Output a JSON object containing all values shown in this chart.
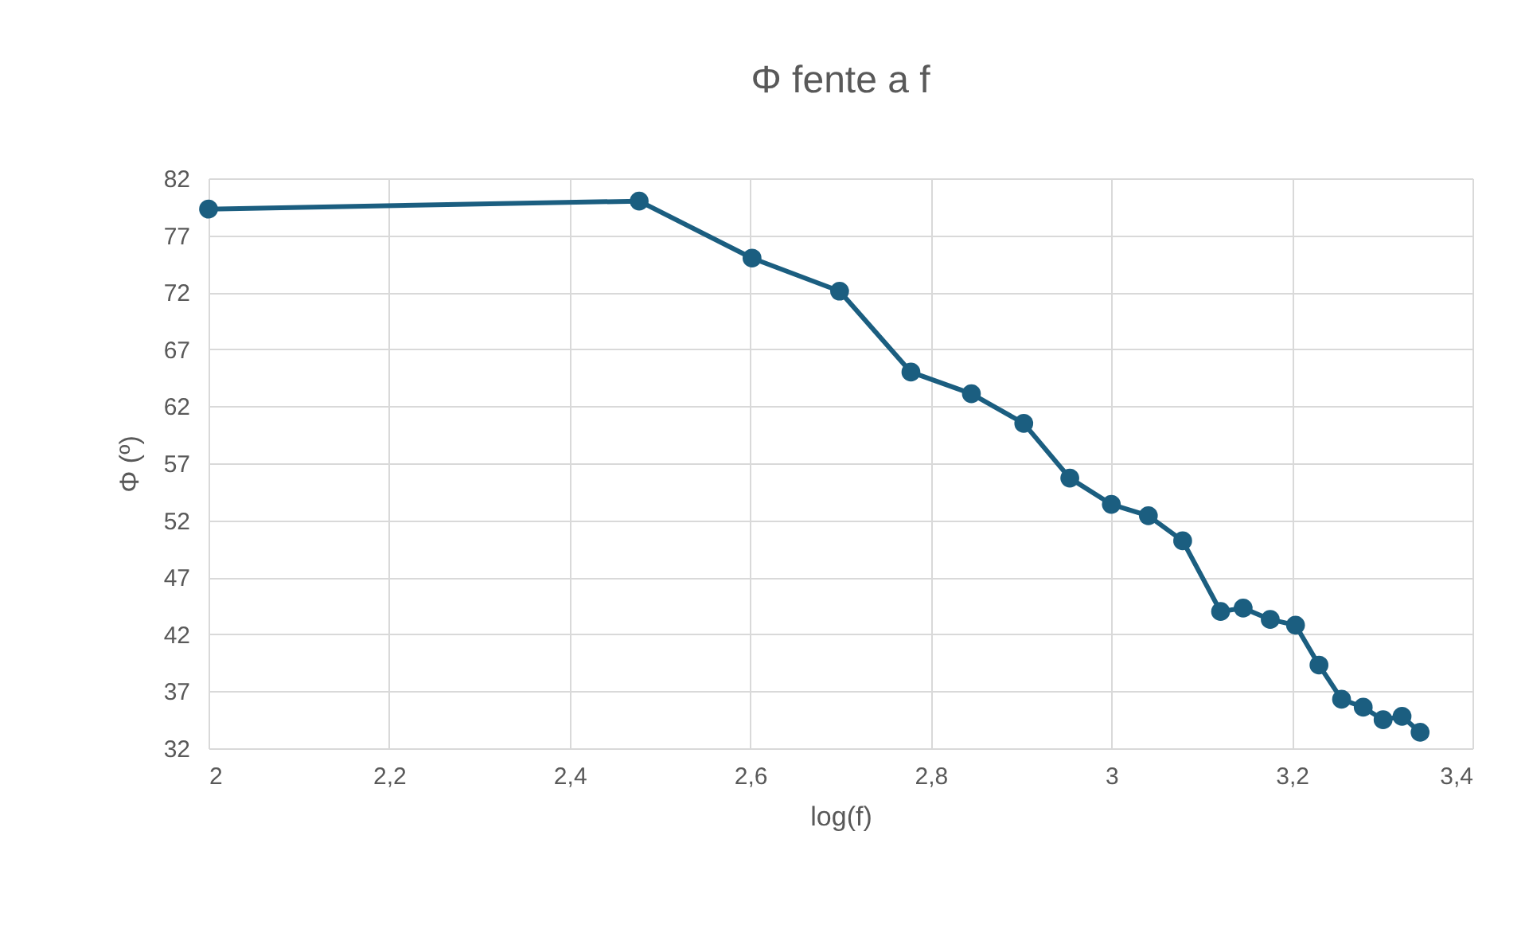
{
  "chart_data": {
    "type": "line",
    "title": "Φ  fente a f",
    "xlabel": "log(f)",
    "ylabel": "Φ (º)",
    "x": [
      2,
      2.477,
      2.602,
      2.699,
      2.778,
      2.845,
      2.903,
      2.954,
      3,
      3.041,
      3.079,
      3.121,
      3.146,
      3.176,
      3.204,
      3.23,
      3.255,
      3.279,
      3.301,
      3.322,
      3.342
    ],
    "series": [
      {
        "color": "#1b5e80",
        "values": [
          79.3,
          80,
          75,
          72.1,
          65,
          63.1,
          60.5,
          55.7,
          53.4,
          52.4,
          50.2,
          44,
          44.3,
          43.3,
          42.8,
          39.3,
          36.3,
          35.6,
          34.5,
          34.8,
          33.4
        ]
      }
    ],
    "xlim": [
      2,
      3.4
    ],
    "xticks": [
      2,
      {
        "value": 2.2,
        "label": "2,2"
      },
      {
        "value": 2.4,
        "label": "2,4"
      },
      {
        "value": 2.6,
        "label": "2,6"
      },
      {
        "value": 2.8,
        "label": "2,8"
      },
      3,
      {
        "value": 3.2,
        "label": "3,2"
      },
      {
        "value": 3.4,
        "label": "3,4"
      }
    ],
    "ylim": [
      32,
      82
    ],
    "yticks": [
      32,
      37,
      42,
      47,
      52,
      57,
      62,
      67,
      72,
      77,
      82
    ],
    "grid": true,
    "marker": "circle",
    "line_style": "solid"
  }
}
